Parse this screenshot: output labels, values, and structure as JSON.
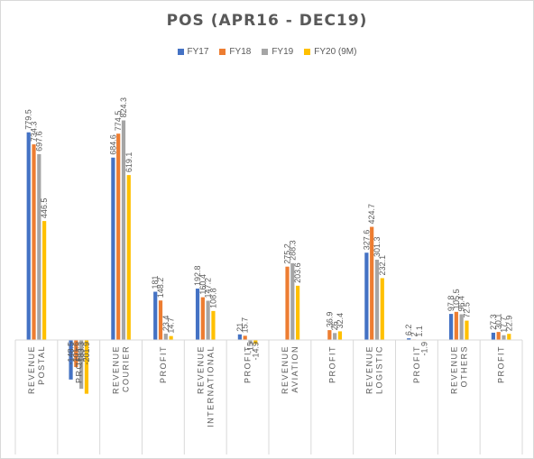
{
  "chart_data": {
    "type": "bar",
    "title": "POS (APR16 - DEC19)",
    "xlabel": "",
    "ylabel": "",
    "ylim": [
      -250,
      850
    ],
    "grid": false,
    "legend_position": "top",
    "categories": [
      [
        "REVENUE",
        "POSTAL"
      ],
      [
        "PROFIT"
      ],
      [
        "REVENUE",
        "COURIER"
      ],
      [
        "PROFIT"
      ],
      [
        "REVENUE",
        "INTERNATIONAL"
      ],
      [
        "PROFIT"
      ],
      [
        "REVENUE",
        "AVIATION"
      ],
      [
        "PROFIT"
      ],
      [
        "REVENUE",
        "LOGISTIC"
      ],
      [
        "PROFIT"
      ],
      [
        "REVENUE",
        "OTHERS"
      ],
      [
        "PROFIT"
      ]
    ],
    "series": [
      {
        "name": "FY17",
        "color": "#4472C4",
        "values": [
          779.5,
          -148.5,
          684.6,
          181,
          192.8,
          21,
          0,
          0,
          327.6,
          6.2,
          97.8,
          27.3
        ],
        "labels": [
          "779.5",
          "-148.5",
          "684.6",
          "181",
          "192.8",
          "21",
          "",
          "",
          "327.6",
          "6.2",
          "97.8",
          "27.3"
        ]
      },
      {
        "name": "FY18",
        "color": "#ED7D31",
        "values": [
          734.3,
          -101.6,
          774.5,
          148.2,
          160.4,
          15.7,
          275.2,
          36.9,
          424.7,
          2,
          105.5,
          30.1
        ],
        "labels": [
          "734.3",
          "-101.6",
          "774.5",
          "148.2",
          "160.4",
          "15.7",
          "275.2",
          "36.9",
          "424.7",
          "2",
          "105.5",
          "30.1"
        ]
      },
      {
        "name": "FY19",
        "color": "#A5A5A5",
        "values": [
          697.6,
          -183.3,
          824.3,
          23.4,
          147.2,
          -15,
          288.3,
          26,
          301.3,
          1.1,
          96.4,
          17.7
        ],
        "labels": [
          "697.6",
          "-183.3",
          "824.3",
          "23.4",
          "147.2",
          "-15",
          "288.3",
          "26",
          "301.3",
          "1.1",
          "96.4",
          "17.7"
        ]
      },
      {
        "name": "FY20 (9M)",
        "color": "#FFC000",
        "values": [
          446.5,
          -201.9,
          619.1,
          14.7,
          108.8,
          -14.9,
          203.6,
          32.4,
          232.1,
          -1.9,
          72.5,
          22.9
        ],
        "labels": [
          "446.5",
          "-201.9",
          "619.1",
          "14.7",
          "108.8",
          "-14.9",
          "203.6",
          "32.4",
          "232.1",
          "-1.9",
          "72.5",
          "22.9"
        ]
      }
    ]
  }
}
